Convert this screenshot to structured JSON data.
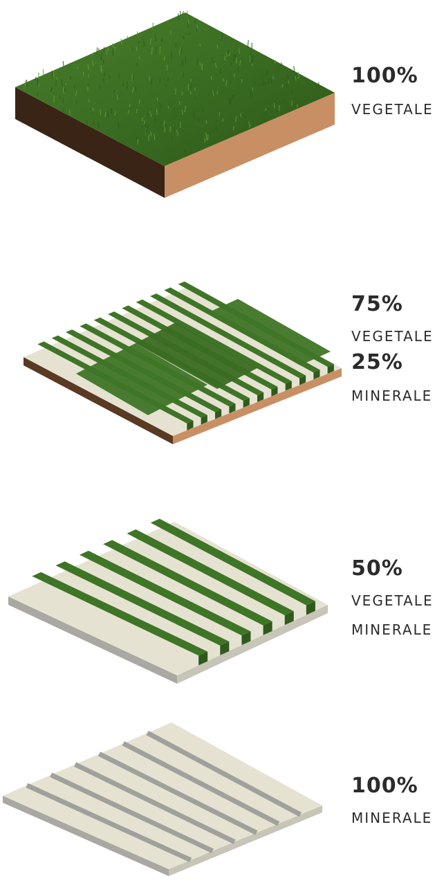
{
  "blocks": [
    {
      "vegetal_fraction": 1.0,
      "lines": [
        {
          "pct": "100%",
          "word": "VEGETALE"
        }
      ]
    },
    {
      "vegetal_fraction": 0.75,
      "lines": [
        {
          "pct": "75%",
          "word": "VEGETALE"
        },
        {
          "pct": "25%",
          "word": "MINERALE"
        }
      ]
    },
    {
      "vegetal_fraction": 0.5,
      "lines": [
        {
          "pct": "50%",
          "word": "VEGETALE"
        },
        {
          "pct": "",
          "word": "MINERALE"
        }
      ]
    },
    {
      "vegetal_fraction": 0.0,
      "lines": [
        {
          "pct": "100%",
          "word": "MINERALE"
        }
      ]
    }
  ],
  "colors": {
    "grass_dark": "#2f5a1c",
    "grass_mid": "#3f7526",
    "grass_light": "#5e9a3a",
    "soil_front": "#3a2416",
    "soil_side": "#c98f64",
    "stone_top": "#e6e2d2",
    "stone_edge": "#a9a8a2",
    "joint": "#a0a09c",
    "text": "#2b2b2b"
  }
}
